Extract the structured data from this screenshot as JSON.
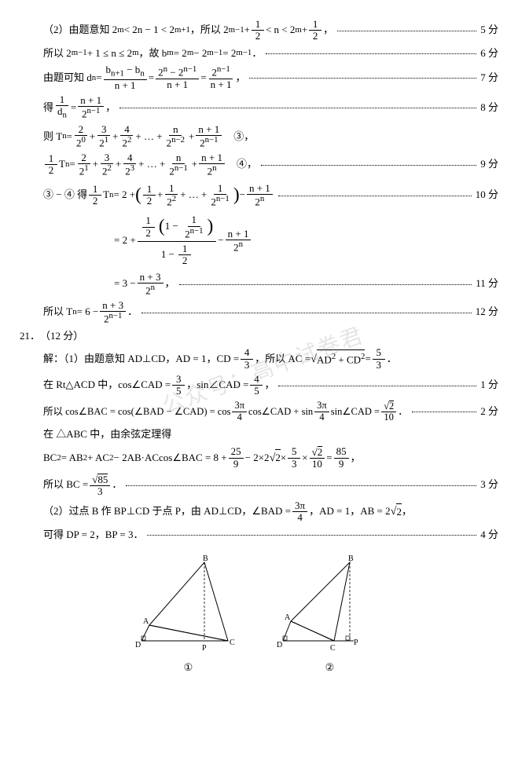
{
  "q20": {
    "l1": {
      "a": "（2）由题意知 2",
      "b": " < 2n − 1 < 2",
      "c": "，所以 2",
      "d": " + ",
      "e": " < n < 2",
      "f": " + ",
      "g": "，",
      "exp1": "m",
      "exp2": "m+1",
      "exp3": "m−1",
      "exp4": "m",
      "f1n": "1",
      "f1d": "2",
      "f2n": "1",
      "f2d": "2",
      "score": "5 分"
    },
    "l2": {
      "a": "所以 2",
      "b": " + 1 ≤ n ≤ 2",
      "c": "，故 b",
      "d": " = 2",
      "e": " − 2",
      "f": " = 2",
      "g": "．",
      "exp1": "m−1",
      "exp2": "m",
      "sub1": "m",
      "exp3": "m",
      "exp4": "m−1",
      "exp5": "m−1",
      "score": "6 分"
    },
    "l3": {
      "a": "由题可知 d",
      "sub1": "n",
      "b": " = ",
      "c": " = ",
      "d": " = ",
      "e": "，",
      "f1n": "b<sub>n+1</sub> − b<sub>n</sub>",
      "f1d": "n + 1",
      "f2n": "2<sup>n</sup> − 2<sup>n−1</sup>",
      "f2d": "n + 1",
      "f3n": "2<sup>n−1</sup>",
      "f3d": "n + 1",
      "score": "7 分"
    },
    "l4": {
      "a": "得 ",
      "b": " = ",
      "c": "，",
      "f1n": "1",
      "f1d": "d<sub>n</sub>",
      "f2n": "n + 1",
      "f2d": "2<sup>n−1</sup>",
      "score": "8 分"
    },
    "l5": {
      "a": "则 T",
      "sub1": "n",
      "b": " = ",
      "c": " + ",
      "d": " + ",
      "e": " + … + ",
      "f": " + ",
      "g": "　③，",
      "f1n": "2",
      "f1d": "2<sup>0</sup>",
      "f2n": "3",
      "f2d": "2<sup>1</sup>",
      "f3n": "4",
      "f3d": "2<sup>2</sup>",
      "f4n": "n",
      "f4d": "2<sup>n−2</sup>",
      "f5n": "n + 1",
      "f5d": "2<sup>n−1</sup>"
    },
    "l6": {
      "a": "",
      "b": "T",
      "sub1": "n",
      "c": " = ",
      "d": " + ",
      "e": " + ",
      "f": " + … + ",
      "g": " + ",
      "h": "　④，",
      "f0n": "1",
      "f0d": "2",
      "f1n": "2",
      "f1d": "2<sup>1</sup>",
      "f2n": "3",
      "f2d": "2<sup>2</sup>",
      "f3n": "4",
      "f3d": "2<sup>3</sup>",
      "f4n": "n",
      "f4d": "2<sup>n−1</sup>",
      "f5n": "n + 1",
      "f5d": "2<sup>n</sup>",
      "score": "9 分"
    },
    "l7": {
      "a": "③ − ④ 得 ",
      "b": "T",
      "sub1": "n",
      "c": " = 2 + ",
      "d": " + ",
      "e": " + … + ",
      "f": " − ",
      "f0n": "1",
      "f0d": "2",
      "f1n": "1",
      "f1d": "2",
      "f2n": "1",
      "f2d": "2<sup>2</sup>",
      "f3n": "1",
      "f3d": "2<sup>n−1</sup>",
      "f4n": "n + 1",
      "f4d": "2<sup>n</sup>",
      "score": "10 分"
    },
    "l8": {
      "a": "= 2 + ",
      "b": " − ",
      "f2n": "n + 1",
      "f2d": "2<sup>n</sup>"
    },
    "l9": {
      "a": "= 3 − ",
      "b": "，",
      "f1n": "n + 3",
      "f1d": "2<sup>n</sup>",
      "score": "11 分"
    },
    "l10": {
      "a": "所以 T",
      "sub1": "n",
      "b": " = 6 − ",
      "c": "．",
      "f1n": "n + 3",
      "f1d": "2<sup>n−1</sup>",
      "score": "12 分"
    }
  },
  "q21": {
    "num": "21．",
    "pts": "（12 分）",
    "l1": {
      "a": "解：（1）由题意知 AD⊥CD，AD = 1，CD = ",
      "b": "，所以 AC = ",
      "c": "AD<sup>2</sup> + CD<sup>2</sup>",
      "d": " = ",
      "e": "．",
      "f1n": "4",
      "f1d": "3",
      "f2n": "5",
      "f2d": "3"
    },
    "l2": {
      "a": "在 Rt△ACD 中，cos∠CAD = ",
      "b": "，sin∠CAD = ",
      "c": "，",
      "f1n": "3",
      "f1d": "5",
      "f2n": "4",
      "f2d": "5",
      "score": "1 分"
    },
    "l3": {
      "a": "所以 cos∠BAC = cos(∠BAD − ∠CAD) = cos",
      "b": "cos∠CAD + sin",
      "c": "sin∠CAD = ",
      "d": "．",
      "f1n": "3π",
      "f1d": "4",
      "f2n": "3π",
      "f2d": "4",
      "f3nrt": "2",
      "f3d": "10",
      "score": "2 分"
    },
    "l4": {
      "a": "在 △ABC 中，由余弦定理得"
    },
    "l5": {
      "a": "BC",
      "b": " = AB",
      "c": " + AC",
      "d": " − 2AB·ACcos∠BAC = 8 + ",
      "e": " − 2×2",
      "rt": "2",
      "f": "×",
      "g": "×",
      "h": " = ",
      "i": "，",
      "f1n": "25",
      "f1d": "9",
      "f2n": "5",
      "f2d": "3",
      "f3nrt": "2",
      "f3d": "10",
      "f4n": "85",
      "f4d": "9"
    },
    "l6": {
      "a": "所以 BC = ",
      "b": "．",
      "f1nrt": "85",
      "f1d": "3",
      "score": "3 分"
    },
    "l7": {
      "a": "（2）过点 B 作 BP⊥CD 于点 P，由 AD⊥CD，∠BAD = ",
      "b": "，AD = 1，AB = 2",
      "rt": "2",
      "c": "，",
      "f1n": "3π",
      "f1d": "4"
    },
    "l8": {
      "a": "可得 DP = 2，BP = 3．",
      "score": "4 分"
    },
    "figlabel1": "①",
    "figlabel2": "②",
    "fig_labels": {
      "A": "A",
      "B": "B",
      "C": "C",
      "D": "D",
      "P": "P"
    }
  }
}
